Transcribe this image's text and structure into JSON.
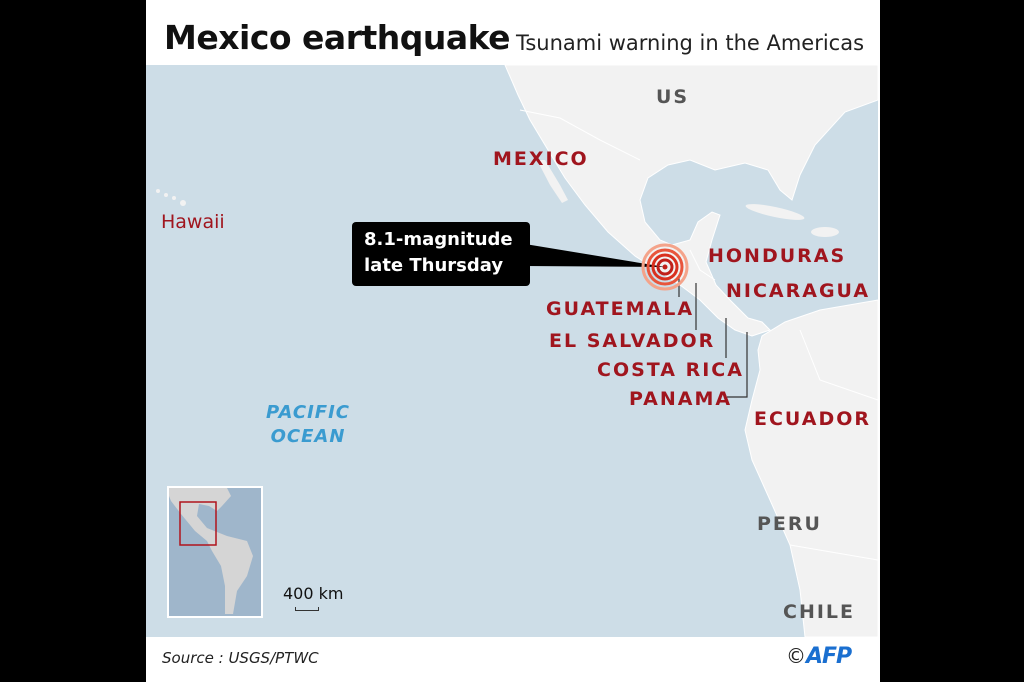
{
  "header": {
    "title": "Mexico earthquake",
    "subtitle": "Tsunami warning in the Americas"
  },
  "callout": {
    "line1": "8.1-magnitude",
    "line2": "late Thursday"
  },
  "labels": {
    "us": "US",
    "mexico": "MEXICO",
    "hawaii": "Hawaii",
    "honduras": "HONDURAS",
    "nicaragua": "NICARAGUA",
    "guatemala": "GUATEMALA",
    "el_salvador": "EL SALVADOR",
    "costa_rica": "COSTA RICA",
    "panama": "PANAMA",
    "ecuador": "ECUADOR",
    "peru": "PERU",
    "chile": "CHILE",
    "ocean_line1": "PACIFIC",
    "ocean_line2": "OCEAN"
  },
  "scale": "400 km",
  "footer": {
    "source": "Source : USGS/PTWC",
    "copyright": "©",
    "agency": "AFP"
  },
  "colors": {
    "sea": "#cddde7",
    "land": "#f2f2f2",
    "affected": "#a0151e",
    "epicenter": "#d9301f",
    "inset_sea": "#9fb6cb"
  }
}
